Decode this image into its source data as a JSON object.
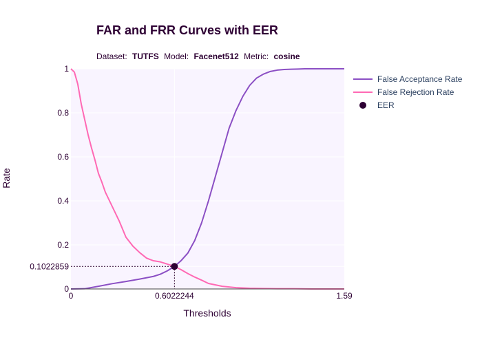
{
  "chart_data": {
    "type": "line",
    "title": "FAR and FRR Curves with EER",
    "subtitle": {
      "dataset_label": "Dataset:",
      "dataset": "TUTFS",
      "model_label": "Model:",
      "model": "Facenet512",
      "metric_label": "Metric:",
      "metric": "cosine"
    },
    "xlabel": "Thresholds",
    "ylabel": "Rate",
    "xlim": [
      0,
      1.59
    ],
    "ylim": [
      0,
      1
    ],
    "x_ticks": [
      {
        "value": 0,
        "label": "0"
      },
      {
        "value": 0.6022244,
        "label": "0.6022244"
      },
      {
        "value": 1.59,
        "label": "1.59"
      }
    ],
    "y_ticks": [
      {
        "value": 0,
        "label": "0"
      },
      {
        "value": 0.1022859,
        "label": "0.1022859"
      },
      {
        "value": 0.2,
        "label": "0.2"
      },
      {
        "value": 0.4,
        "label": "0.4"
      },
      {
        "value": 0.6,
        "label": "0.6"
      },
      {
        "value": 0.8,
        "label": "0.8"
      },
      {
        "value": 1,
        "label": "1"
      }
    ],
    "series": [
      {
        "name": "False Acceptance Rate",
        "color": "#8b4fc4",
        "x": [
          0,
          0.08,
          0.16,
          0.24,
          0.32,
          0.4,
          0.48,
          0.52,
          0.56,
          0.6022244,
          0.64,
          0.68,
          0.72,
          0.76,
          0.8,
          0.84,
          0.88,
          0.92,
          0.96,
          1.0,
          1.04,
          1.08,
          1.12,
          1.16,
          1.2,
          1.24,
          1.28,
          1.32,
          1.36,
          1.4,
          1.45,
          1.5,
          1.59
        ],
        "y": [
          0,
          0.001,
          0.012,
          0.024,
          0.034,
          0.045,
          0.057,
          0.067,
          0.082,
          0.1022859,
          0.128,
          0.163,
          0.22,
          0.3,
          0.4,
          0.51,
          0.62,
          0.73,
          0.81,
          0.875,
          0.925,
          0.958,
          0.976,
          0.988,
          0.994,
          0.997,
          0.998,
          0.999,
          1,
          1,
          1,
          1,
          1
        ]
      },
      {
        "name": "False Rejection Rate",
        "color": "#ff69b4",
        "x": [
          0,
          0.02,
          0.04,
          0.06,
          0.08,
          0.1,
          0.12,
          0.14,
          0.16,
          0.18,
          0.2,
          0.24,
          0.28,
          0.32,
          0.36,
          0.4,
          0.44,
          0.48,
          0.52,
          0.56,
          0.6022244,
          0.64,
          0.68,
          0.72,
          0.76,
          0.8,
          0.88,
          0.96,
          1.04,
          1.12,
          1.2,
          1.3,
          1.4,
          1.5,
          1.59
        ],
        "y": [
          1,
          0.985,
          0.93,
          0.84,
          0.77,
          0.7,
          0.64,
          0.585,
          0.525,
          0.485,
          0.44,
          0.375,
          0.31,
          0.235,
          0.195,
          0.165,
          0.14,
          0.128,
          0.123,
          0.113,
          0.1022859,
          0.088,
          0.07,
          0.054,
          0.04,
          0.025,
          0.012,
          0.006,
          0.003,
          0.002,
          0.001,
          0.001,
          0,
          0,
          0
        ]
      }
    ],
    "eer_point": {
      "name": "EER",
      "x": 0.6022244,
      "y": 0.1022859,
      "color": "#2d0033"
    },
    "legend_position": "top-right",
    "grid": true,
    "colors": {
      "plot_background": "#f9f4ff",
      "grid": "#ffffff",
      "text": "#2d0033",
      "legend_text": "#2a3f5f",
      "axis_line": "#444444"
    }
  }
}
